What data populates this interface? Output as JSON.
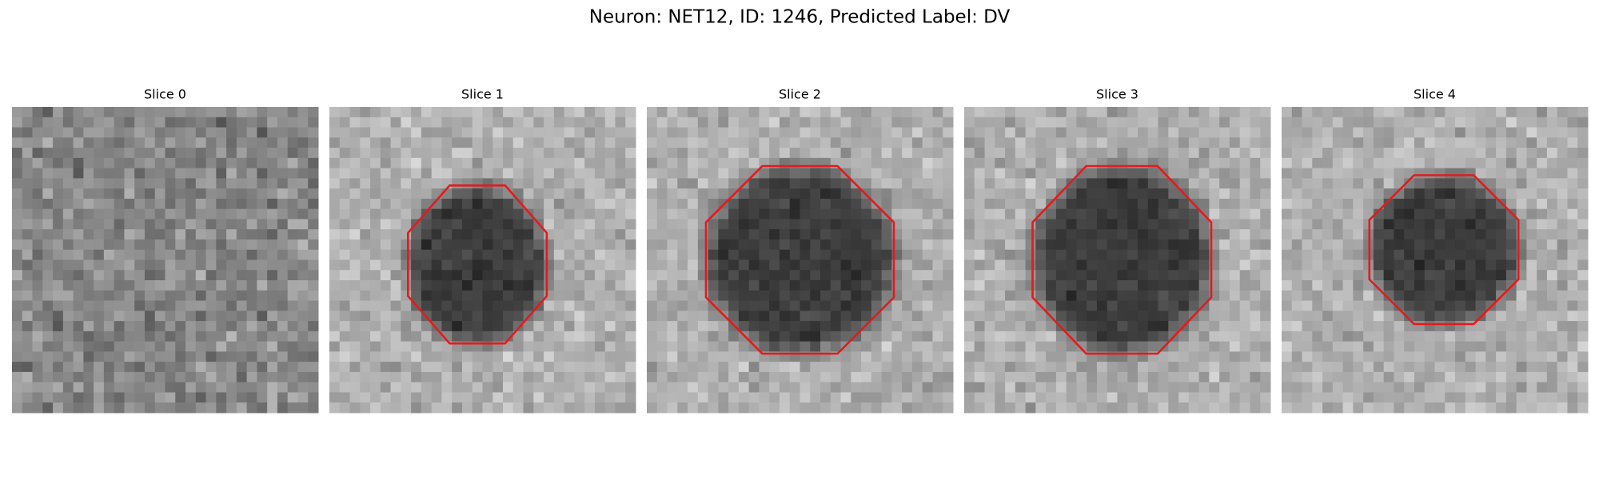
{
  "title": "Neuron: NET12, ID: 1246, Predicted Label: DV",
  "panels": [
    {
      "title": "Slice 0"
    },
    {
      "title": "Slice 1"
    },
    {
      "title": "Slice 2"
    },
    {
      "title": "Slice 3"
    },
    {
      "title": "Slice 4"
    }
  ]
}
